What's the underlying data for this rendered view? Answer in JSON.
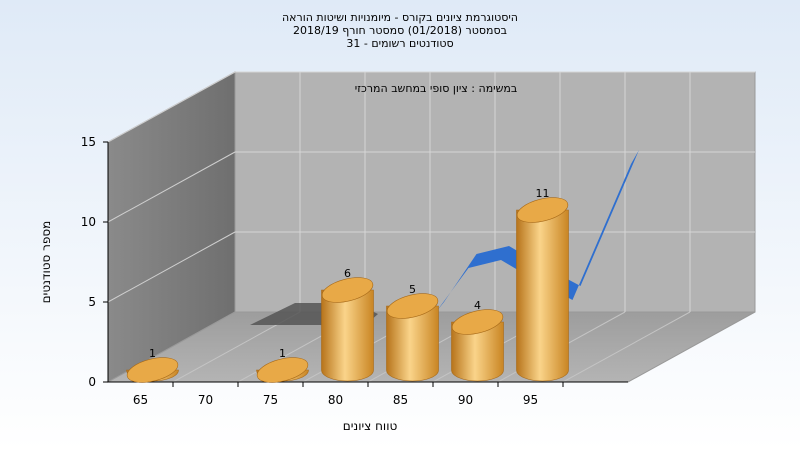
{
  "header": {
    "title_lines": [
      "היסטוגרמת ציונים בקורס - מיומנויות ושיטות הוראה",
      "בסמסטר  (01/2018)  סמסטר חורף  2018/19",
      "סטודנטים רשומים - 31"
    ]
  },
  "chart_data": {
    "type": "bar",
    "title": "היסטוגרמת ציונים בקורס - מיומנויות ושיטות הוראה",
    "annotation": "במשימה : ציון סופי במחשב המרכזי",
    "xlabel": "טווח ציונים",
    "ylabel": "מספר סטודנטים",
    "x_tick_labels": [
      "65",
      "70",
      "75",
      "80",
      "85",
      "90",
      "95"
    ],
    "y_tick_labels": [
      "0",
      "5",
      "10",
      "15"
    ],
    "ylim": [
      0,
      15
    ],
    "grid": true,
    "categories": [
      "65",
      "75",
      "80",
      "85",
      "90",
      "95"
    ],
    "values": [
      1,
      1,
      6,
      5,
      4,
      11
    ],
    "data_labels": [
      "1",
      "1",
      "6",
      "5",
      "4",
      "11"
    ],
    "trend_ribbon": {
      "color": "#2f6fcf",
      "values": [
        5,
        8,
        8.5,
        7.3,
        6,
        14.5
      ]
    },
    "shadow_ribbon": {
      "color": "#555555"
    },
    "colors": {
      "bar_light": "#fad48a",
      "bar_mid": "#e8a947",
      "bar_dark": "#b7741b",
      "back_wall": "#b3b3b3",
      "side_wall": "#7f7f7f",
      "floor": "#a3a3a3"
    }
  }
}
